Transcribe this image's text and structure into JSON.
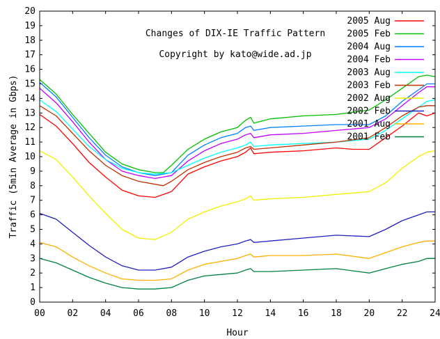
{
  "chart_data": {
    "type": "line",
    "xlabel": "Hour",
    "ylabel": "Traffic (5min Average in Gbps)",
    "xlim": [
      0,
      24
    ],
    "ylim": [
      0,
      20
    ],
    "x_ticks": [
      "00",
      "02",
      "04",
      "06",
      "08",
      "10",
      "12",
      "14",
      "16",
      "18",
      "20",
      "22",
      "24"
    ],
    "y_ticks": [
      "0",
      "1",
      "2",
      "3",
      "4",
      "5",
      "6",
      "7",
      "8",
      "9",
      "10",
      "11",
      "12",
      "13",
      "14",
      "15",
      "16",
      "17",
      "18",
      "19",
      "20"
    ],
    "annotations": [
      "Changes of DIX-IE Traffic Pattern",
      "Copyright by kato@wide.ad.jp"
    ],
    "grid": false,
    "legend_position": "top-right",
    "series": [
      {
        "name": "2005 Aug",
        "color": "#ff0000",
        "x": [
          0,
          1,
          2,
          3,
          4,
          5,
          6,
          7,
          8,
          9,
          10,
          11,
          12,
          12.5,
          12.8,
          13,
          14,
          16,
          18,
          19,
          20,
          21,
          22,
          23,
          23.5,
          24
        ],
        "y": [
          12.9,
          12.1,
          10.9,
          9.6,
          8.6,
          7.7,
          7.3,
          7.2,
          7.6,
          8.8,
          9.3,
          9.7,
          10.0,
          10.3,
          10.6,
          10.2,
          10.3,
          10.4,
          10.6,
          10.5,
          10.5,
          11.3,
          12.1,
          13.0,
          12.8,
          13.0
        ]
      },
      {
        "name": "2005 Feb",
        "color": "#00c000",
        "x": [
          0,
          1,
          2,
          3,
          4,
          5,
          6,
          7,
          7.5,
          8,
          9,
          10,
          11,
          12,
          12.5,
          12.8,
          13,
          14,
          16,
          18,
          20,
          21,
          22,
          23,
          23.5,
          24
        ],
        "y": [
          15.3,
          14.3,
          12.9,
          11.6,
          10.3,
          9.5,
          9.1,
          8.9,
          8.9,
          9.4,
          10.5,
          11.2,
          11.7,
          12.0,
          12.5,
          12.7,
          12.3,
          12.6,
          12.8,
          12.9,
          13.2,
          13.9,
          14.7,
          15.5,
          15.6,
          15.5
        ]
      },
      {
        "name": "2004 Aug",
        "color": "#0080ff",
        "x": [
          0,
          1,
          2,
          3,
          4,
          5,
          6,
          7,
          8,
          9,
          10,
          11,
          12,
          12.5,
          12.8,
          13,
          14,
          16,
          18,
          20,
          21,
          22,
          23,
          23.5,
          24
        ],
        "y": [
          15.1,
          14.1,
          12.7,
          11.3,
          10.1,
          9.3,
          8.9,
          8.7,
          8.9,
          10.1,
          10.8,
          11.3,
          11.6,
          12.0,
          12.1,
          11.8,
          12.0,
          12.1,
          12.2,
          12.2,
          12.8,
          13.8,
          14.6,
          15.0,
          15.0
        ]
      },
      {
        "name": "2004 Feb",
        "color": "#c000ff",
        "x": [
          0,
          1,
          2,
          3,
          4,
          5,
          6,
          7,
          8,
          9,
          10,
          11,
          12,
          12.5,
          12.8,
          13,
          14,
          16,
          18,
          20,
          21,
          22,
          23,
          23.5,
          24
        ],
        "y": [
          14.7,
          13.7,
          12.4,
          11.0,
          9.8,
          9.0,
          8.7,
          8.5,
          8.7,
          9.7,
          10.4,
          10.9,
          11.2,
          11.5,
          11.6,
          11.3,
          11.5,
          11.6,
          11.8,
          12.0,
          12.6,
          13.5,
          14.4,
          14.8,
          14.8
        ]
      },
      {
        "name": "2003 Aug",
        "color": "#00ffff",
        "x": [
          0,
          1,
          2,
          3,
          4,
          5,
          6,
          7,
          8,
          9,
          10,
          11,
          12,
          12.5,
          12.8,
          13,
          14,
          16,
          18,
          20,
          21,
          22,
          23,
          23.5,
          24
        ],
        "y": [
          13.9,
          13.1,
          11.9,
          10.7,
          9.8,
          9.2,
          8.9,
          8.8,
          8.9,
          9.4,
          9.9,
          10.3,
          10.6,
          10.8,
          11.0,
          10.7,
          10.8,
          10.9,
          11.0,
          11.2,
          11.8,
          12.6,
          13.4,
          13.8,
          13.9
        ]
      },
      {
        "name": "2003 Feb",
        "color": "#c03000",
        "x": [
          0,
          1,
          2,
          3,
          4,
          5,
          6,
          7,
          7.5,
          8,
          9,
          10,
          11,
          12,
          12.5,
          12.8,
          13,
          14,
          16,
          18,
          20,
          21,
          22,
          23,
          23.5,
          24
        ],
        "y": [
          13.5,
          12.8,
          11.6,
          10.4,
          9.4,
          8.7,
          8.3,
          8.1,
          8.0,
          8.3,
          9.1,
          9.6,
          10.0,
          10.3,
          10.6,
          10.7,
          10.5,
          10.6,
          10.8,
          11.0,
          11.3,
          12.0,
          12.8,
          13.4,
          13.5,
          13.5
        ]
      },
      {
        "name": "2002 Aug",
        "color": "#f0f000",
        "x": [
          0,
          1,
          2,
          3,
          4,
          5,
          6,
          7,
          8,
          9,
          10,
          11,
          12,
          12.5,
          12.8,
          13,
          14,
          16,
          18,
          19,
          20,
          21,
          22,
          23,
          23.5,
          24
        ],
        "y": [
          10.4,
          9.8,
          8.6,
          7.3,
          6.1,
          5.0,
          4.4,
          4.3,
          4.8,
          5.7,
          6.2,
          6.6,
          6.9,
          7.1,
          7.3,
          7.0,
          7.1,
          7.2,
          7.4,
          7.5,
          7.6,
          8.2,
          9.2,
          10.0,
          10.3,
          10.4
        ]
      },
      {
        "name": "2002 Feb",
        "color": "#2020c0",
        "x": [
          0,
          1,
          2,
          3,
          4,
          5,
          6,
          7,
          8,
          9,
          10,
          11,
          12,
          12.5,
          12.8,
          13,
          14,
          16,
          18,
          20,
          21,
          22,
          23,
          23.5,
          24
        ],
        "y": [
          6.1,
          5.7,
          4.8,
          3.9,
          3.1,
          2.5,
          2.2,
          2.2,
          2.4,
          3.1,
          3.5,
          3.8,
          4.0,
          4.2,
          4.3,
          4.1,
          4.2,
          4.4,
          4.6,
          4.5,
          5.0,
          5.6,
          6.0,
          6.2,
          6.2
        ]
      },
      {
        "name": "2001 Aug",
        "color": "#ffb000",
        "x": [
          0,
          1,
          2,
          3,
          4,
          5,
          6,
          7,
          8,
          9,
          10,
          11,
          12,
          12.5,
          12.8,
          13,
          14,
          16,
          18,
          20,
          21,
          22,
          23,
          23.5,
          24
        ],
        "y": [
          4.1,
          3.8,
          3.1,
          2.5,
          2.0,
          1.6,
          1.5,
          1.5,
          1.6,
          2.2,
          2.6,
          2.8,
          3.0,
          3.2,
          3.3,
          3.1,
          3.2,
          3.2,
          3.3,
          3.0,
          3.4,
          3.8,
          4.1,
          4.2,
          4.2
        ]
      },
      {
        "name": "2001 Feb",
        "color": "#008040",
        "x": [
          0,
          1,
          2,
          3,
          4,
          5,
          6,
          7,
          8,
          9,
          10,
          11,
          12,
          12.5,
          12.8,
          13,
          14,
          16,
          18,
          20,
          21,
          22,
          23,
          23.5,
          24
        ],
        "y": [
          3.0,
          2.7,
          2.2,
          1.7,
          1.3,
          1.0,
          0.9,
          0.9,
          1.0,
          1.5,
          1.8,
          1.9,
          2.0,
          2.2,
          2.3,
          2.1,
          2.1,
          2.2,
          2.3,
          2.0,
          2.3,
          2.6,
          2.8,
          3.0,
          3.0
        ]
      }
    ]
  }
}
